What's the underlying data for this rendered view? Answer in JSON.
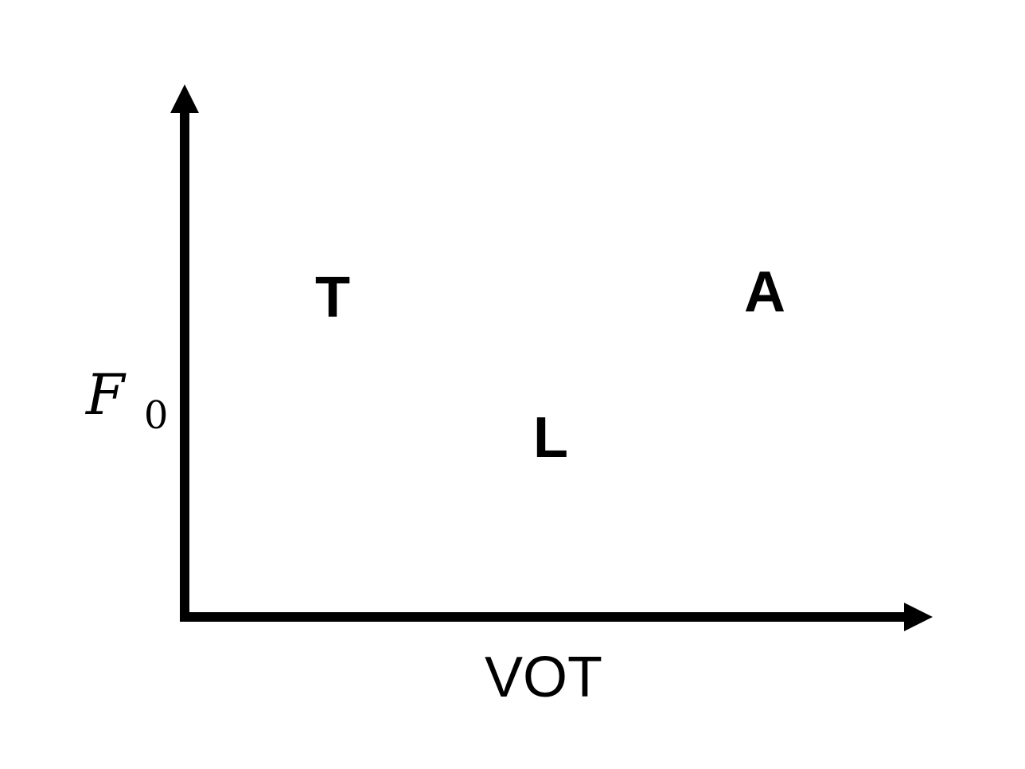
{
  "axes": {
    "x_label": "VOT",
    "y_label_main": "F",
    "y_label_subscript": "0",
    "color": "#000000"
  },
  "points": [
    {
      "label": "T"
    },
    {
      "label": "A"
    },
    {
      "label": "L"
    }
  ]
}
